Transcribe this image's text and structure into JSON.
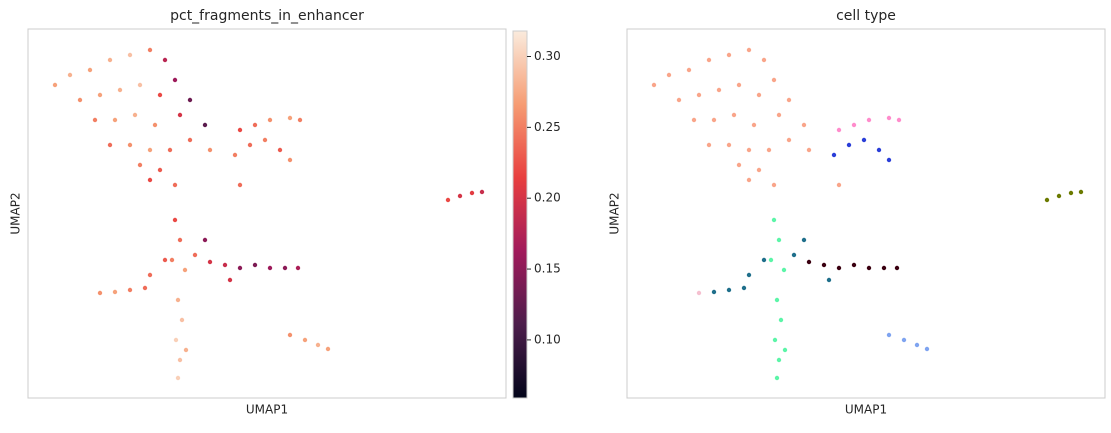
{
  "chart_data": [
    {
      "type": "scatter",
      "title": "pct_fragments_in_enhancer",
      "xlabel": "UMAP1",
      "ylabel": "UMAP2",
      "xlim": [
        0,
        478
      ],
      "ylim": [
        0,
        369
      ],
      "x": [
        27,
        42,
        62,
        82,
        102,
        122,
        137,
        147,
        162,
        177,
        52,
        72,
        92,
        112,
        132,
        152,
        67,
        87,
        107,
        127,
        82,
        102,
        122,
        142,
        112,
        132,
        147,
        122,
        162,
        182,
        212,
        212,
        227,
        242,
        262,
        272,
        222,
        237,
        252,
        262,
        207,
        420,
        432,
        444,
        454,
        147,
        152,
        144,
        157,
        150,
        154,
        148,
        152,
        150,
        158,
        122,
        137,
        167,
        182,
        197,
        212,
        227,
        242,
        257,
        270,
        177,
        202,
        72,
        87,
        102,
        117,
        262,
        277,
        290,
        300
      ],
      "y": [
        313,
        323,
        328,
        338,
        343,
        348,
        338,
        318,
        298,
        273,
        298,
        303,
        308,
        313,
        303,
        283,
        278,
        278,
        283,
        273,
        253,
        253,
        248,
        248,
        233,
        228,
        213,
        218,
        258,
        248,
        213,
        268,
        273,
        278,
        280,
        278,
        253,
        258,
        248,
        238,
        243,
        198,
        202,
        205,
        206,
        178,
        158,
        138,
        128,
        98,
        78,
        58,
        38,
        20,
        48,
        123,
        138,
        143,
        136,
        133,
        130,
        133,
        130,
        130,
        130,
        158,
        118,
        105,
        106,
        108,
        110,
        63,
        58,
        53,
        49
      ],
      "values": [
        0.27,
        0.28,
        0.27,
        0.28,
        0.29,
        0.25,
        0.18,
        0.16,
        0.13,
        0.12,
        0.26,
        0.27,
        0.28,
        0.29,
        0.22,
        0.2,
        0.25,
        0.27,
        0.28,
        0.26,
        0.24,
        0.26,
        0.27,
        0.24,
        0.25,
        0.23,
        0.24,
        0.22,
        0.24,
        0.26,
        0.24,
        0.22,
        0.24,
        0.26,
        0.27,
        0.25,
        0.24,
        0.25,
        0.23,
        0.26,
        0.25,
        0.22,
        0.2,
        0.21,
        0.19,
        0.22,
        0.24,
        0.25,
        0.27,
        0.28,
        0.29,
        0.3,
        0.29,
        0.3,
        0.28,
        0.24,
        0.23,
        0.24,
        0.2,
        0.19,
        0.15,
        0.14,
        0.16,
        0.15,
        0.17,
        0.15,
        0.2,
        0.26,
        0.27,
        0.25,
        0.24,
        0.26,
        0.27,
        0.28,
        0.27
      ],
      "clim": [
        0.059,
        0.318
      ],
      "cticks": [
        {
          "value": 0.1,
          "label": "0.10"
        },
        {
          "value": 0.15,
          "label": "0.15"
        },
        {
          "value": 0.2,
          "label": "0.20"
        },
        {
          "value": 0.25,
          "label": "0.25"
        },
        {
          "value": 0.3,
          "label": "0.30"
        }
      ],
      "colormap": [
        "#03051a",
        "#4c1d4b",
        "#a11a5b",
        "#e83f3f",
        "#f69c73",
        "#faebdd"
      ]
    },
    {
      "type": "scatter",
      "title": "cell type",
      "xlabel": "UMAP1",
      "ylabel": "UMAP2",
      "xlim": [
        0,
        478
      ],
      "ylim": [
        0,
        369
      ],
      "series": [
        {
          "color": "#f9a58a",
          "x": [
            27,
            42,
            62,
            82,
            102,
            122,
            137,
            147,
            162,
            177,
            52,
            72,
            92,
            112,
            132,
            152,
            67,
            87,
            107,
            127,
            82,
            102,
            122,
            142,
            112,
            132,
            147,
            122,
            162,
            182,
            212
          ],
          "y": [
            313,
            323,
            328,
            338,
            343,
            348,
            338,
            318,
            298,
            273,
            298,
            303,
            308,
            313,
            303,
            283,
            278,
            278,
            283,
            273,
            253,
            253,
            248,
            248,
            233,
            228,
            213,
            218,
            258,
            248,
            213
          ]
        },
        {
          "color": "#ff8ccc",
          "x": [
            212,
            227,
            242,
            262,
            272
          ],
          "y": [
            268,
            273,
            278,
            280,
            278
          ]
        },
        {
          "color": "#2a3ed8",
          "x": [
            222,
            237,
            252,
            262,
            207
          ],
          "y": [
            253,
            258,
            248,
            238,
            243
          ]
        },
        {
          "color": "#6b7a00",
          "x": [
            420,
            432,
            444,
            454
          ],
          "y": [
            198,
            202,
            205,
            206
          ]
        },
        {
          "color": "#5cf5a8",
          "x": [
            147,
            152,
            144,
            157,
            150,
            154,
            148,
            152,
            150,
            158
          ],
          "y": [
            178,
            158,
            138,
            128,
            98,
            78,
            58,
            38,
            20,
            48
          ]
        },
        {
          "color": "#3a0010",
          "x": [
            182,
            197,
            212,
            227,
            242,
            257,
            270
          ],
          "y": [
            136,
            133,
            130,
            133,
            130,
            130,
            130
          ]
        },
        {
          "color": "#1f6f8b",
          "x": [
            122,
            137,
            167,
            177,
            202,
            87,
            102,
            117
          ],
          "y": [
            123,
            138,
            143,
            158,
            118,
            106,
            108,
            110
          ]
        },
        {
          "color": "#f5c0d0",
          "x": [
            72
          ],
          "y": [
            105
          ]
        },
        {
          "color": "#7fa4f0",
          "x": [
            262,
            277,
            290,
            300
          ],
          "y": [
            63,
            58,
            53,
            49
          ]
        }
      ]
    }
  ]
}
